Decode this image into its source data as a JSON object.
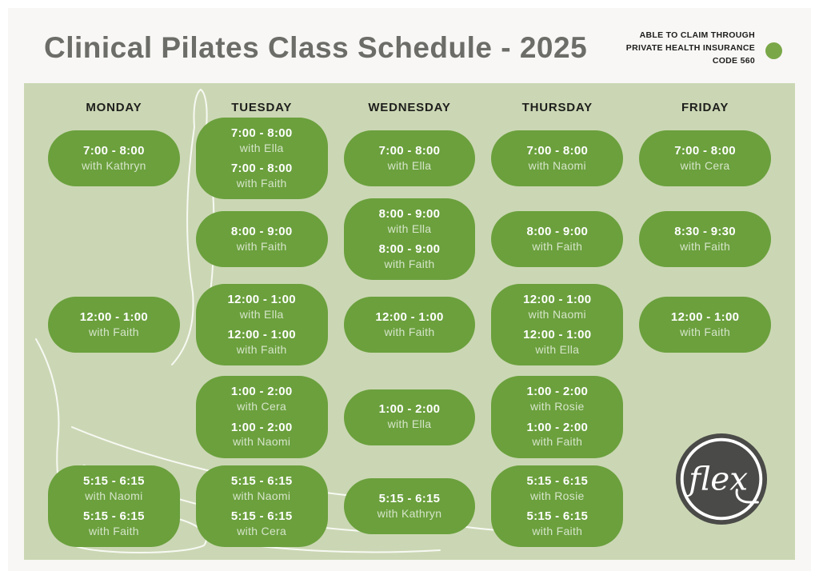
{
  "header": {
    "title": "Clinical Pilates Class Schedule - 2025",
    "insurance_note_lines": [
      "ABLE TO CLAIM THROUGH",
      "PRIVATE HEALTH INSURANCE",
      "CODE 560"
    ]
  },
  "colors": {
    "card_green": "#6ba03d",
    "panel_sage": "#cbd7b4",
    "dot_green": "#7aa748",
    "title_gray": "#6c6c68",
    "logo_charcoal": "#4a4a48"
  },
  "logo": {
    "text": "flex"
  },
  "schedule": {
    "days": [
      {
        "label": "MONDAY",
        "cards": [
          {
            "slot": 1,
            "sessions": [
              {
                "time": "7:00 - 8:00",
                "instructor": "with Kathryn"
              }
            ]
          },
          {
            "slot": 3,
            "sessions": [
              {
                "time": "12:00 - 1:00",
                "instructor": "with Faith"
              }
            ]
          },
          {
            "slot": 5,
            "sessions": [
              {
                "time": "5:15 - 6:15",
                "instructor": "with Naomi"
              },
              {
                "time": "5:15 - 6:15",
                "instructor": "with Faith"
              }
            ]
          }
        ]
      },
      {
        "label": "TUESDAY",
        "cards": [
          {
            "slot": 1,
            "sessions": [
              {
                "time": "7:00 - 8:00",
                "instructor": "with Ella"
              },
              {
                "time": "7:00 - 8:00",
                "instructor": "with Faith"
              }
            ]
          },
          {
            "slot": 2,
            "sessions": [
              {
                "time": "8:00 - 9:00",
                "instructor": "with Faith"
              }
            ]
          },
          {
            "slot": 3,
            "sessions": [
              {
                "time": "12:00 - 1:00",
                "instructor": "with Ella"
              },
              {
                "time": "12:00 - 1:00",
                "instructor": "with Faith"
              }
            ]
          },
          {
            "slot": 4,
            "sessions": [
              {
                "time": "1:00 - 2:00",
                "instructor": "with Cera"
              },
              {
                "time": "1:00 - 2:00",
                "instructor": "with Naomi"
              }
            ]
          },
          {
            "slot": 5,
            "sessions": [
              {
                "time": "5:15 - 6:15",
                "instructor": "with Naomi"
              },
              {
                "time": "5:15 - 6:15",
                "instructor": "with Cera"
              }
            ]
          }
        ]
      },
      {
        "label": "WEDNESDAY",
        "cards": [
          {
            "slot": 1,
            "sessions": [
              {
                "time": "7:00 - 8:00",
                "instructor": "with Ella"
              }
            ]
          },
          {
            "slot": 2,
            "sessions": [
              {
                "time": "8:00 - 9:00",
                "instructor": "with Ella"
              },
              {
                "time": "8:00 - 9:00",
                "instructor": "with Faith"
              }
            ]
          },
          {
            "slot": 3,
            "sessions": [
              {
                "time": "12:00 - 1:00",
                "instructor": "with Faith"
              }
            ]
          },
          {
            "slot": 4,
            "sessions": [
              {
                "time": "1:00 - 2:00",
                "instructor": "with Ella"
              }
            ]
          },
          {
            "slot": 5,
            "sessions": [
              {
                "time": "5:15 - 6:15",
                "instructor": "with Kathryn"
              }
            ]
          }
        ]
      },
      {
        "label": "THURSDAY",
        "cards": [
          {
            "slot": 1,
            "sessions": [
              {
                "time": "7:00 - 8:00",
                "instructor": "with Naomi"
              }
            ]
          },
          {
            "slot": 2,
            "sessions": [
              {
                "time": "8:00 - 9:00",
                "instructor": "with Faith"
              }
            ]
          },
          {
            "slot": 3,
            "sessions": [
              {
                "time": "12:00 - 1:00",
                "instructor": "with Naomi"
              },
              {
                "time": "12:00 - 1:00",
                "instructor": "with Ella"
              }
            ]
          },
          {
            "slot": 4,
            "sessions": [
              {
                "time": "1:00 - 2:00",
                "instructor": "with Rosie"
              },
              {
                "time": "1:00 - 2:00",
                "instructor": "with Faith"
              }
            ]
          },
          {
            "slot": 5,
            "sessions": [
              {
                "time": "5:15 - 6:15",
                "instructor": "with Rosie"
              },
              {
                "time": "5:15 - 6:15",
                "instructor": "with Faith"
              }
            ]
          }
        ]
      },
      {
        "label": "FRIDAY",
        "cards": [
          {
            "slot": 1,
            "sessions": [
              {
                "time": "7:00 - 8:00",
                "instructor": "with Cera"
              }
            ]
          },
          {
            "slot": 2,
            "sessions": [
              {
                "time": "8:30 - 9:30",
                "instructor": "with Faith"
              }
            ]
          },
          {
            "slot": 3,
            "sessions": [
              {
                "time": "12:00 - 1:00",
                "instructor": "with Faith"
              }
            ]
          }
        ]
      }
    ]
  }
}
